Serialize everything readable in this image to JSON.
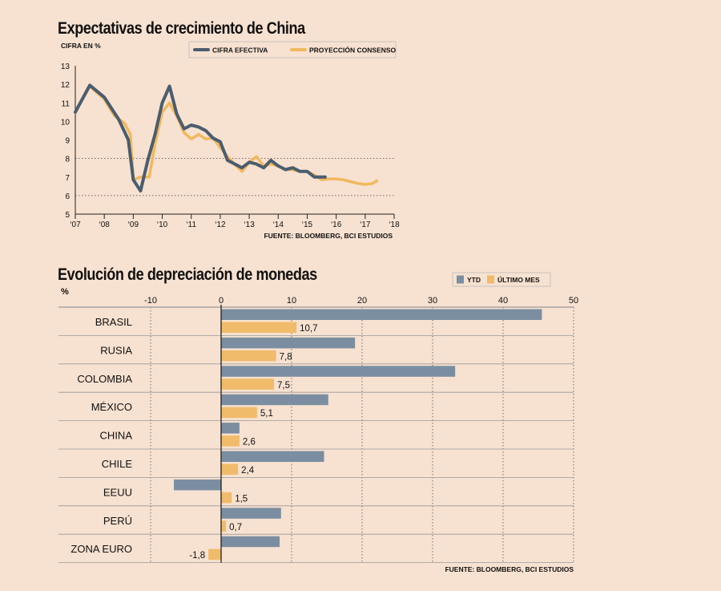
{
  "chart_data": [
    {
      "type": "line",
      "title": "Expectativas de crecimiento de China",
      "ylabel": "CIFRA EN %",
      "ylim": [
        5,
        13
      ],
      "yticks": [
        "5",
        "6",
        "7",
        "8",
        "9",
        "10",
        "11",
        "12",
        "13"
      ],
      "xlim": [
        2007,
        2018
      ],
      "xticks": [
        "‘07",
        "‘08",
        "‘09",
        "‘10",
        "‘11",
        "‘12",
        "‘13",
        "‘14",
        "‘15",
        "‘16",
        "‘17",
        "‘18"
      ],
      "source": "FUENTE: BLOOMBERG, BCI ESTUDIOS",
      "series": [
        {
          "name": "CIFRA EFECTIVA",
          "color": "#4a5d6e",
          "points": [
            [
              2007.0,
              10.5
            ],
            [
              2007.5,
              11.95
            ],
            [
              2008.0,
              11.3
            ],
            [
              2008.5,
              10.1
            ],
            [
              2008.83,
              9.0
            ],
            [
              2009.0,
              6.85
            ],
            [
              2009.25,
              6.25
            ],
            [
              2009.5,
              7.9
            ],
            [
              2009.75,
              9.3
            ],
            [
              2010.0,
              11.0
            ],
            [
              2010.25,
              11.9
            ],
            [
              2010.5,
              10.4
            ],
            [
              2010.75,
              9.6
            ],
            [
              2011.0,
              9.8
            ],
            [
              2011.25,
              9.7
            ],
            [
              2011.5,
              9.5
            ],
            [
              2011.75,
              9.1
            ],
            [
              2012.0,
              8.9
            ],
            [
              2012.25,
              7.9
            ],
            [
              2012.75,
              7.5
            ],
            [
              2013.0,
              7.8
            ],
            [
              2013.25,
              7.7
            ],
            [
              2013.5,
              7.5
            ],
            [
              2013.75,
              7.9
            ],
            [
              2014.0,
              7.6
            ],
            [
              2014.25,
              7.4
            ],
            [
              2014.5,
              7.5
            ],
            [
              2014.75,
              7.3
            ],
            [
              2015.0,
              7.3
            ],
            [
              2015.25,
              7.0
            ],
            [
              2015.5,
              7.0
            ],
            [
              2015.62,
              7.0
            ]
          ]
        },
        {
          "name": "PROYECCIÓN CONSENSO",
          "color": "#f1b85e",
          "points": [
            [
              2007.0,
              10.5
            ],
            [
              2007.5,
              11.9
            ],
            [
              2008.0,
              11.2
            ],
            [
              2008.35,
              10.3
            ],
            [
              2008.7,
              9.9
            ],
            [
              2008.9,
              9.3
            ],
            [
              2009.0,
              6.85
            ],
            [
              2009.25,
              7.0
            ],
            [
              2009.55,
              7.0
            ],
            [
              2009.75,
              8.8
            ],
            [
              2010.0,
              10.5
            ],
            [
              2010.25,
              11.0
            ],
            [
              2010.5,
              10.3
            ],
            [
              2010.75,
              9.4
            ],
            [
              2011.0,
              9.05
            ],
            [
              2011.25,
              9.3
            ],
            [
              2011.5,
              9.05
            ],
            [
              2011.75,
              9.1
            ],
            [
              2012.0,
              8.6
            ],
            [
              2012.25,
              8.1
            ],
            [
              2012.5,
              7.7
            ],
            [
              2012.75,
              7.3
            ],
            [
              2013.0,
              7.8
            ],
            [
              2013.25,
              8.1
            ],
            [
              2013.5,
              7.6
            ],
            [
              2013.75,
              7.7
            ],
            [
              2014.0,
              7.6
            ],
            [
              2014.25,
              7.4
            ],
            [
              2014.5,
              7.4
            ],
            [
              2014.75,
              7.3
            ],
            [
              2015.0,
              7.3
            ],
            [
              2015.25,
              7.1
            ],
            [
              2015.5,
              6.85
            ],
            [
              2015.75,
              6.9
            ],
            [
              2016.0,
              6.9
            ],
            [
              2016.25,
              6.85
            ],
            [
              2016.5,
              6.75
            ],
            [
              2016.75,
              6.65
            ],
            [
              2017.0,
              6.6
            ],
            [
              2017.25,
              6.65
            ],
            [
              2017.4,
              6.8
            ]
          ]
        }
      ]
    },
    {
      "type": "bar",
      "orientation": "horizontal",
      "title": "Evolución de depreciación de monedas",
      "unit_label": "%",
      "xlim": [
        -20,
        50
      ],
      "xticks": [
        "-10",
        "0",
        "10",
        "20",
        "30",
        "40",
        "50"
      ],
      "categories": [
        "BRASIL",
        "RUSIA",
        "COLOMBIA",
        "MÉXICO",
        "CHINA",
        "CHILE",
        "EEUU",
        "PERÚ",
        "ZONA EURO"
      ],
      "series": [
        {
          "name": "YTD",
          "color": "#7b8ea1",
          "values": [
            45.5,
            19.0,
            33.2,
            15.2,
            2.6,
            14.6,
            -6.7,
            8.5,
            8.3
          ]
        },
        {
          "name": "ÚLTIMO MES",
          "color": "#f0bb6a",
          "values": [
            10.7,
            7.8,
            7.5,
            5.1,
            2.6,
            2.4,
            1.5,
            0.7,
            -1.8
          ]
        }
      ],
      "value_labels": [
        "10,7",
        "7,8",
        "7,5",
        "5,1",
        "2,6",
        "2,4",
        "1,5",
        "0,7",
        "-1,8"
      ],
      "source": "FUENTE: BLOOMBERG, BCI ESTUDIOS"
    }
  ]
}
